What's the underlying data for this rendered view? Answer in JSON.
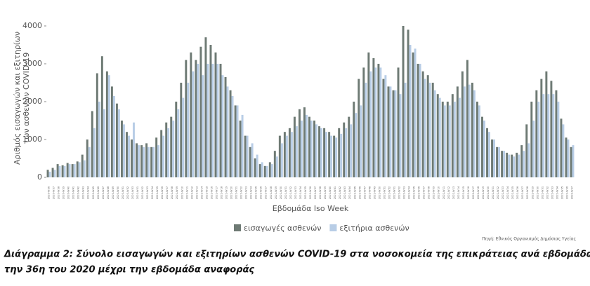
{
  "chart_data": {
    "type": "bar",
    "y_label": [
      "Αριθμός εισαγωγών και εξιτηρίων",
      "των ασθενών COVID-19"
    ],
    "x_label": "Εβδομάδα Iso Week",
    "source": "Πηγή: Εθνικός Οργανισμός Δημόσιας Υγείας",
    "caption": [
      "Διάγραμμα 2: Σύνολο εισαγωγών και εξιτηρίων ασθενών COVID-19 στα νοσοκομεία της επικράτειας ανά εβδομάδα, από",
      "την 36η του 2020 μέχρι την εβδομάδα αναφοράς"
    ],
    "legend": "bottom",
    "grid": false,
    "ylim": [
      -200,
      4200
    ],
    "yticks": [
      0,
      1000,
      2000,
      3000,
      4000
    ],
    "categories": [
      "2020-W36",
      "2020-W37",
      "2020-W38",
      "2020-W39",
      "2020-W40",
      "2020-W41",
      "2020-W42",
      "2020-W43",
      "2020-W44",
      "2020-W45",
      "2020-W46",
      "2020-W47",
      "2020-W48",
      "2020-W49",
      "2020-W50",
      "2020-W51",
      "2020-W52",
      "2020-W53",
      "2021-W01",
      "2021-W02",
      "2021-W03",
      "2021-W04",
      "2021-W05",
      "2021-W06",
      "2021-W07",
      "2021-W08",
      "2021-W09",
      "2021-W10",
      "2021-W11",
      "2021-W12",
      "2021-W13",
      "2021-W14",
      "2021-W15",
      "2021-W16",
      "2021-W17",
      "2021-W18",
      "2021-W19",
      "2021-W20",
      "2021-W21",
      "2021-W22",
      "2021-W23",
      "2021-W24",
      "2021-W25",
      "2021-W26",
      "2021-W27",
      "2021-W28",
      "2021-W29",
      "2021-W30",
      "2021-W31",
      "2021-W32",
      "2021-W33",
      "2021-W34",
      "2021-W35",
      "2021-W36",
      "2021-W37",
      "2021-W38",
      "2021-W39",
      "2021-W40",
      "2021-W41",
      "2021-W42",
      "2021-W43",
      "2021-W44",
      "2021-W45",
      "2021-W46",
      "2021-W47",
      "2021-W48",
      "2021-W49",
      "2021-W50",
      "2021-W51",
      "2021-W52",
      "2022-W01",
      "2022-W02",
      "2022-W03",
      "2022-W04",
      "2022-W05",
      "2022-W06",
      "2022-W07",
      "2022-W08",
      "2022-W09",
      "2022-W10",
      "2022-W11",
      "2022-W12",
      "2022-W13",
      "2022-W14",
      "2022-W15",
      "2022-W16",
      "2022-W17",
      "2022-W18",
      "2022-W19",
      "2022-W20",
      "2022-W21",
      "2022-W22",
      "2022-W23",
      "2022-W24",
      "2022-W25",
      "2022-W26",
      "2022-W27",
      "2022-W28",
      "2022-W29",
      "2022-W30",
      "2022-W31",
      "2022-W32",
      "2022-W33",
      "2022-W34",
      "2022-W35",
      "2022-W36",
      "2022-W37"
    ],
    "series": [
      {
        "name": "εισαγωγές ασθενών",
        "color": "#6e7a74",
        "values": [
          200,
          250,
          350,
          320,
          380,
          350,
          420,
          600,
          1000,
          1750,
          2750,
          3200,
          2800,
          2400,
          1950,
          1500,
          1200,
          1000,
          900,
          850,
          900,
          800,
          1050,
          1250,
          1450,
          1600,
          2000,
          2500,
          3100,
          3300,
          3100,
          3450,
          3700,
          3500,
          3300,
          3000,
          2650,
          2300,
          1900,
          1500,
          1100,
          800,
          500,
          350,
          300,
          400,
          700,
          1100,
          1200,
          1300,
          1600,
          1800,
          1850,
          1600,
          1500,
          1350,
          1300,
          1200,
          1100,
          1300,
          1450,
          1600,
          2000,
          2600,
          2900,
          3300,
          3150,
          3000,
          2600,
          2400,
          2300,
          2900,
          4000,
          3900,
          3300,
          3000,
          2800,
          2700,
          2500,
          2200,
          2000,
          2000,
          2200,
          2400,
          2800,
          3100,
          2500,
          2000,
          1600,
          1300,
          1000,
          800,
          700,
          650,
          600,
          650,
          850,
          1400,
          2000,
          2300,
          2600,
          2800,
          2550,
          2300,
          1550,
          1050,
          800
        ]
      },
      {
        "name": "εξιτήρια ασθενών",
        "color": "#b8cde6",
        "values": [
          150,
          200,
          300,
          300,
          350,
          350,
          400,
          450,
          800,
          1300,
          2000,
          1800,
          2700,
          2150,
          1800,
          1400,
          1100,
          1450,
          850,
          800,
          800,
          800,
          850,
          1100,
          1300,
          1500,
          1800,
          2100,
          2500,
          2800,
          3000,
          2700,
          3000,
          3000,
          3000,
          2700,
          2400,
          2150,
          1900,
          1650,
          1100,
          900,
          600,
          400,
          300,
          350,
          550,
          900,
          1100,
          1200,
          1350,
          1500,
          1650,
          1500,
          1400,
          1300,
          1200,
          1100,
          1050,
          1150,
          1300,
          1400,
          1700,
          1900,
          2500,
          2800,
          2900,
          2900,
          2700,
          2400,
          2300,
          2200,
          2500,
          3500,
          3400,
          3000,
          2600,
          2500,
          2300,
          2100,
          1900,
          1900,
          2000,
          2100,
          2400,
          2450,
          2300,
          1900,
          1500,
          1200,
          1000,
          800,
          700,
          600,
          550,
          600,
          700,
          900,
          1500,
          2000,
          2200,
          2200,
          2200,
          2000,
          1400,
          1000,
          850
        ]
      }
    ]
  }
}
